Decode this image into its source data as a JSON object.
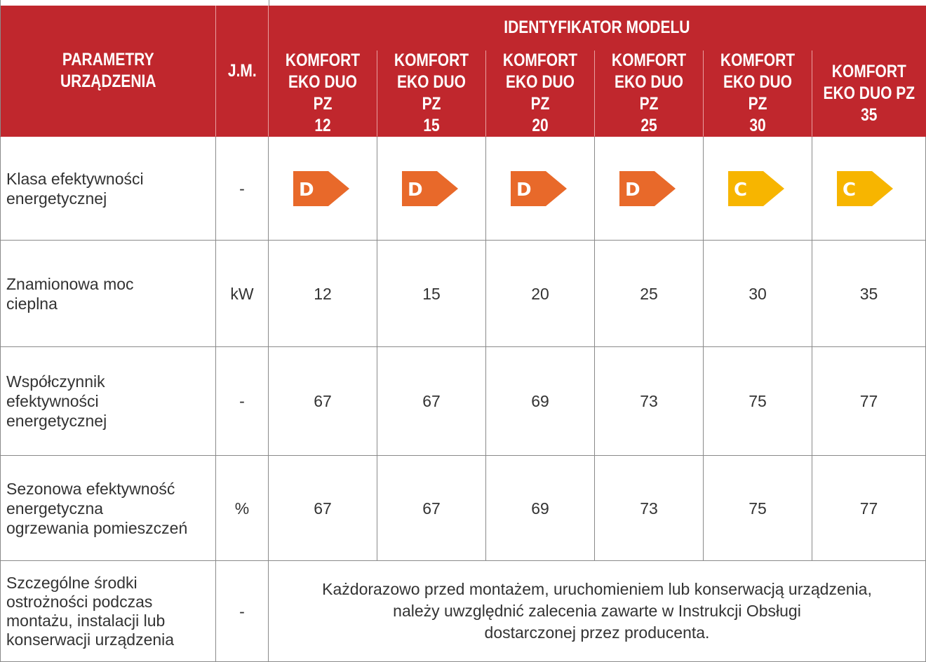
{
  "header": {
    "parameters": "PARAMETRY\nURZĄDZENIA",
    "unit": "J.M.",
    "model_group": "IDENTYFIKATOR MODELU",
    "models": [
      "KOMFORT\nEKO DUO PZ\n12",
      "KOMFORT\nEKO DUO PZ\n15",
      "KOMFORT\nEKO DUO PZ\n20",
      "KOMFORT\nEKO DUO PZ\n25",
      "KOMFORT\nEKO DUO PZ\n30",
      "KOMFORT\nEKO DUO PZ\n35"
    ]
  },
  "rows": [
    {
      "label": "Klasa efektywności\nenergetycznej",
      "unit": "-",
      "values": [
        "D",
        "D",
        "D",
        "D",
        "C",
        "C"
      ],
      "colors": [
        "#e8692a",
        "#e8692a",
        "#e8692a",
        "#e8692a",
        "#f7b500",
        "#f7b500"
      ]
    },
    {
      "label": "Znamionowa moc\ncieplna",
      "unit": "kW",
      "values": [
        12,
        15,
        20,
        25,
        30,
        35
      ]
    },
    {
      "label": "Współczynnik\nefektywności\nenergetycznej",
      "unit": "-",
      "values": [
        67,
        67,
        69,
        73,
        75,
        77
      ]
    },
    {
      "label": "Sezonowa efektywność\nenergetyczna\nogrzewania pomieszczeń",
      "unit": "%",
      "values": [
        67,
        67,
        69,
        73,
        75,
        77
      ]
    }
  ],
  "note_row": {
    "label": "Szczególne środki\nostrożności podczas\nmontażu, instalacji lub\nkonserwacji urządzenia",
    "unit": "-",
    "note": "Każdorazowo przed montażem, uruchomieniem lub konserwacją urządzenia,\nnależy uwzględnić zalecenia zawarte w Instrukcji Obsługi\ndostarczonej przez producenta."
  }
}
